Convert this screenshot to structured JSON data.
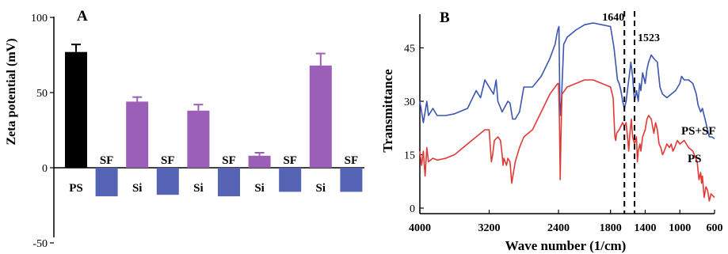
{
  "chart_data": [
    {
      "type": "bar",
      "panel_label": "A",
      "ylabel": "Zeta potential (mV)",
      "ylim": [
        -60,
        100
      ],
      "y_ticks": [
        100,
        50,
        0,
        -50
      ],
      "categories": [
        "PS",
        "SF",
        "Si",
        "SF",
        "Si",
        "SF",
        "Si",
        "SF",
        "Si",
        "SF"
      ],
      "values": [
        77,
        -19,
        44,
        -18,
        38,
        -19,
        8,
        -16,
        68,
        -16
      ],
      "errors": [
        5,
        0,
        3,
        0,
        4,
        0,
        2,
        0,
        8,
        0
      ],
      "bar_colors": [
        "#000000",
        "#5563b4",
        "#9b5fb8",
        "#5563b4",
        "#9b5fb8",
        "#5563b4",
        "#9b5fb8",
        "#5563b4",
        "#9b5fb8",
        "#5563b4"
      ],
      "grid": false,
      "legend": "none"
    },
    {
      "type": "line",
      "panel_label": "B",
      "xlabel": "Wave number (1/cm)",
      "ylabel": "Transmittance",
      "xlim": [
        4000,
        600
      ],
      "ylim": [
        0,
        55
      ],
      "x_ticks": [
        4000,
        3200,
        2400,
        1800,
        1400,
        1000,
        600
      ],
      "y_ticks": [
        0,
        15,
        30,
        45
      ],
      "annotations": [
        {
          "text": "1640",
          "x": 1640
        },
        {
          "text": "1523",
          "x": 1523
        }
      ],
      "grid": false,
      "legend": "none",
      "series": [
        {
          "name": "PS+SF",
          "color": "#3a55b2",
          "points": [
            [
              4000,
              30
            ],
            [
              3960,
              24
            ],
            [
              3920,
              30
            ],
            [
              3900,
              26
            ],
            [
              3850,
              28
            ],
            [
              3800,
              26
            ],
            [
              3700,
              26
            ],
            [
              3600,
              26.5
            ],
            [
              3450,
              28
            ],
            [
              3350,
              33
            ],
            [
              3300,
              31
            ],
            [
              3250,
              36
            ],
            [
              3200,
              34
            ],
            [
              3150,
              32
            ],
            [
              3120,
              36
            ],
            [
              3100,
              30
            ],
            [
              3050,
              27
            ],
            [
              2985,
              30
            ],
            [
              2960,
              29.5
            ],
            [
              2930,
              25
            ],
            [
              2900,
              25
            ],
            [
              2850,
              27
            ],
            [
              2800,
              34
            ],
            [
              2700,
              34
            ],
            [
              2600,
              37
            ],
            [
              2500,
              42
            ],
            [
              2440,
              46
            ],
            [
              2410,
              50
            ],
            [
              2395,
              51
            ],
            [
              2385,
              30
            ],
            [
              2375,
              26
            ],
            [
              2365,
              31
            ],
            [
              2340,
              46
            ],
            [
              2300,
              48
            ],
            [
              2200,
              50
            ],
            [
              2100,
              51.5
            ],
            [
              2000,
              52
            ],
            [
              1900,
              51.5
            ],
            [
              1800,
              51
            ],
            [
              1760,
              45
            ],
            [
              1720,
              36
            ],
            [
              1700,
              35
            ],
            [
              1680,
              33
            ],
            [
              1660,
              30
            ],
            [
              1640,
              28
            ],
            [
              1620,
              30
            ],
            [
              1600,
              34
            ],
            [
              1580,
              38
            ],
            [
              1565,
              41
            ],
            [
              1545,
              37
            ],
            [
              1523,
              30
            ],
            [
              1500,
              33
            ],
            [
              1480,
              30
            ],
            [
              1465,
              35
            ],
            [
              1450,
              33
            ],
            [
              1430,
              38
            ],
            [
              1400,
              35
            ],
            [
              1380,
              39
            ],
            [
              1360,
              41
            ],
            [
              1330,
              43
            ],
            [
              1300,
              42
            ],
            [
              1260,
              41
            ],
            [
              1230,
              34
            ],
            [
              1200,
              32
            ],
            [
              1150,
              31
            ],
            [
              1100,
              32
            ],
            [
              1050,
              33
            ],
            [
              1000,
              35
            ],
            [
              980,
              37
            ],
            [
              950,
              36
            ],
            [
              900,
              36
            ],
            [
              850,
              35
            ],
            [
              810,
              32
            ],
            [
              790,
              29
            ],
            [
              760,
              27
            ],
            [
              740,
              28
            ],
            [
              700,
              24
            ],
            [
              680,
              22
            ],
            [
              660,
              20
            ],
            [
              630,
              20
            ],
            [
              600,
              19.5
            ]
          ]
        },
        {
          "name": "PS",
          "color": "#e03a36",
          "points": [
            [
              4000,
              16
            ],
            [
              3980,
              12
            ],
            [
              3960,
              16
            ],
            [
              3940,
              9
            ],
            [
              3920,
              17
            ],
            [
              3900,
              13
            ],
            [
              3850,
              14
            ],
            [
              3800,
              13.5
            ],
            [
              3700,
              14
            ],
            [
              3600,
              15
            ],
            [
              3500,
              17
            ],
            [
              3400,
              19
            ],
            [
              3300,
              21
            ],
            [
              3250,
              22
            ],
            [
              3200,
              22
            ],
            [
              3175,
              13
            ],
            [
              3160,
              15
            ],
            [
              3140,
              19
            ],
            [
              3100,
              20
            ],
            [
              3070,
              19
            ],
            [
              3050,
              15
            ],
            [
              3040,
              12
            ],
            [
              3030,
              14
            ],
            [
              3000,
              12
            ],
            [
              2985,
              14
            ],
            [
              2960,
              13
            ],
            [
              2940,
              7
            ],
            [
              2920,
              10
            ],
            [
              2900,
              13
            ],
            [
              2850,
              17
            ],
            [
              2800,
              20
            ],
            [
              2700,
              22
            ],
            [
              2600,
              27
            ],
            [
              2500,
              32
            ],
            [
              2440,
              34
            ],
            [
              2410,
              35
            ],
            [
              2400,
              35
            ],
            [
              2390,
              25
            ],
            [
              2380,
              8
            ],
            [
              2372,
              20
            ],
            [
              2360,
              32
            ],
            [
              2300,
              34
            ],
            [
              2200,
              35
            ],
            [
              2100,
              36
            ],
            [
              2000,
              36
            ],
            [
              1900,
              35
            ],
            [
              1800,
              34
            ],
            [
              1770,
              31
            ],
            [
              1750,
              20
            ],
            [
              1740,
              19
            ],
            [
              1730,
              21
            ],
            [
              1700,
              22
            ],
            [
              1660,
              24
            ],
            [
              1640,
              23
            ],
            [
              1620,
              24
            ],
            [
              1600,
              19
            ],
            [
              1590,
              16
            ],
            [
              1580,
              20
            ],
            [
              1560,
              25
            ],
            [
              1545,
              20
            ],
            [
              1523,
              18
            ],
            [
              1500,
              20
            ],
            [
              1490,
              13
            ],
            [
              1480,
              16
            ],
            [
              1460,
              18
            ],
            [
              1450,
              16
            ],
            [
              1430,
              20
            ],
            [
              1400,
              22
            ],
            [
              1380,
              25
            ],
            [
              1360,
              26
            ],
            [
              1330,
              25
            ],
            [
              1300,
              21
            ],
            [
              1280,
              24
            ],
            [
              1260,
              22
            ],
            [
              1240,
              18
            ],
            [
              1220,
              17
            ],
            [
              1200,
              15
            ],
            [
              1180,
              16
            ],
            [
              1150,
              18
            ],
            [
              1120,
              17
            ],
            [
              1100,
              18
            ],
            [
              1080,
              16
            ],
            [
              1060,
              17
            ],
            [
              1030,
              19
            ],
            [
              1000,
              18
            ],
            [
              950,
              19
            ],
            [
              900,
              17
            ],
            [
              850,
              16
            ],
            [
              800,
              13
            ],
            [
              780,
              8
            ],
            [
              760,
              10
            ],
            [
              750,
              7
            ],
            [
              740,
              9
            ],
            [
              720,
              3
            ],
            [
              700,
              6
            ],
            [
              680,
              5
            ],
            [
              660,
              2
            ],
            [
              640,
              4
            ],
            [
              620,
              3.5
            ],
            [
              600,
              3
            ]
          ]
        }
      ]
    }
  ]
}
